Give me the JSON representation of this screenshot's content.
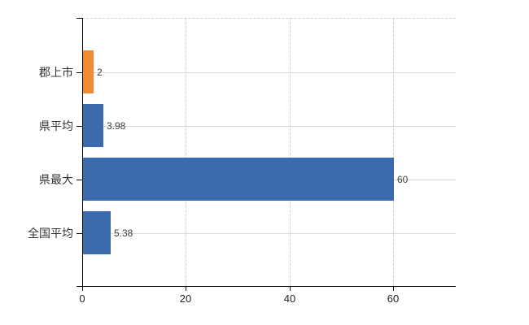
{
  "chart_data": {
    "type": "bar",
    "orientation": "horizontal",
    "title": "",
    "categories": [
      "郡上市",
      "県平均",
      "県最大",
      "全国平均"
    ],
    "values": [
      2,
      3.98,
      60,
      5.38
    ],
    "value_labels": [
      "2",
      "3.98",
      "60",
      "5.38"
    ],
    "bar_colors": [
      "#ee8c33",
      "#3c6bad",
      "#3c6bad",
      "#3c6bad"
    ],
    "x_ticks": [
      0,
      20,
      40,
      60
    ],
    "x_tick_labels": [
      "0",
      "20",
      "40",
      "60"
    ],
    "xlim": [
      0,
      72
    ],
    "grid": true,
    "legend_position": "none",
    "xlabel": "",
    "ylabel": ""
  },
  "style": {
    "background": "#ffffff",
    "axis_color": "#000000",
    "h_gridline_color": "#d5dcd1",
    "v_gridline_color": "#d5ccd5",
    "orange": "#ee8c33",
    "blue": "#3c6bad",
    "text_color": "#333333",
    "value_text_color": "#3f3f3f"
  }
}
